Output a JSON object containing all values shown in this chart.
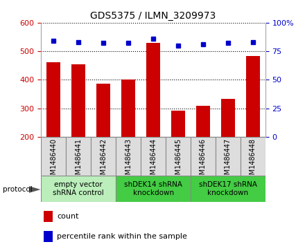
{
  "title": "GDS5375 / ILMN_3209973",
  "categories": [
    "GSM1486440",
    "GSM1486441",
    "GSM1486442",
    "GSM1486443",
    "GSM1486444",
    "GSM1486445",
    "GSM1486446",
    "GSM1486447",
    "GSM1486448"
  ],
  "bar_values": [
    460,
    455,
    385,
    400,
    530,
    292,
    308,
    332,
    482
  ],
  "percentile_values": [
    84,
    83,
    82,
    82,
    86,
    80,
    81,
    82,
    83
  ],
  "bar_color": "#cc0000",
  "dot_color": "#0000cc",
  "ylim_left": [
    200,
    600
  ],
  "ylim_right": [
    0,
    100
  ],
  "yticks_left": [
    200,
    300,
    400,
    500,
    600
  ],
  "yticks_right": [
    0,
    25,
    50,
    75,
    100
  ],
  "yticklabels_right": [
    "0",
    "25",
    "50",
    "75",
    "100%"
  ],
  "groups": [
    {
      "label": "empty vector\nshRNA control",
      "start": 0,
      "end": 3,
      "color": "#bbeebb"
    },
    {
      "label": "shDEK14 shRNA\nknockdown",
      "start": 3,
      "end": 6,
      "color": "#44cc44"
    },
    {
      "label": "shDEK17 shRNA\nknockdown",
      "start": 6,
      "end": 9,
      "color": "#44cc44"
    }
  ],
  "protocol_label": "protocol",
  "legend_count_label": "count",
  "legend_pct_label": "percentile rank within the sample",
  "background_color": "#ffffff",
  "plot_bg_color": "#ffffff",
  "tick_label_color_left": "#cc0000",
  "tick_label_color_right": "#0000cc",
  "cell_bg_color": "#dddddd",
  "title_fontsize": 10,
  "tick_fontsize": 8,
  "group_fontsize": 7.5,
  "cat_fontsize": 7
}
